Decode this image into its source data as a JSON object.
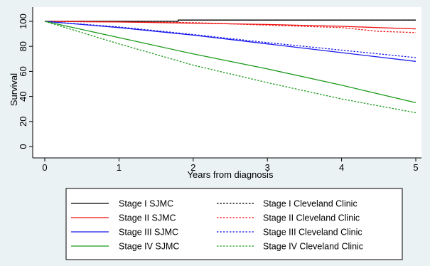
{
  "chart_data": {
    "type": "line",
    "title": "",
    "xlabel": "Years from diagnosis",
    "ylabel": "Survival",
    "xlim": [
      0,
      5
    ],
    "ylim": [
      0,
      100
    ],
    "xticks": [
      0,
      1,
      2,
      3,
      4,
      5
    ],
    "yticks": [
      0,
      20,
      40,
      60,
      80,
      100
    ],
    "grid": false,
    "legend_position": "bottom",
    "legend_columns": 2,
    "series": [
      {
        "name": "Stage I SJMC",
        "color": "#000000",
        "dash": "solid",
        "x": [
          0,
          1.8,
          1.8,
          5
        ],
        "y": [
          100,
          100,
          101,
          101
        ]
      },
      {
        "name": "Stage I Cleveland Clinic",
        "color": "#000000",
        "dash": "dotted",
        "x": [
          0,
          1.8,
          1.8,
          5
        ],
        "y": [
          100,
          100,
          101,
          101
        ]
      },
      {
        "name": "Stage II SJMC",
        "color": "#ee1111",
        "dash": "solid",
        "x": [
          0,
          1,
          2,
          3,
          4,
          5
        ],
        "y": [
          100,
          99.5,
          98.5,
          97.5,
          96,
          94
        ]
      },
      {
        "name": "Stage II Cleveland Clinic",
        "color": "#ee1111",
        "dash": "dotted",
        "x": [
          0,
          1,
          2,
          3,
          4,
          4.5,
          5
        ],
        "y": [
          100,
          99.5,
          99,
          97,
          95,
          92,
          91
        ]
      },
      {
        "name": "Stage III SJMC",
        "color": "#1a1aee",
        "dash": "solid",
        "x": [
          0,
          1,
          2,
          3,
          4,
          5
        ],
        "y": [
          100,
          95,
          89,
          82,
          75,
          68
        ]
      },
      {
        "name": "Stage III Cleveland Clinic",
        "color": "#1a1aee",
        "dash": "dotted",
        "x": [
          0,
          1,
          2,
          3,
          4,
          5
        ],
        "y": [
          100,
          95.5,
          89.5,
          83,
          77,
          71
        ]
      },
      {
        "name": "Stage IV SJMC",
        "color": "#1a9a1a",
        "dash": "solid",
        "x": [
          0,
          1,
          2,
          3,
          4,
          5
        ],
        "y": [
          100,
          87,
          74,
          62,
          49,
          35
        ]
      },
      {
        "name": "Stage IV Cleveland Clinic",
        "color": "#1a9a1a",
        "dash": "dotted",
        "x": [
          0,
          1,
          2,
          3,
          4,
          5
        ],
        "y": [
          100,
          82,
          65,
          51,
          38,
          27
        ]
      }
    ]
  }
}
